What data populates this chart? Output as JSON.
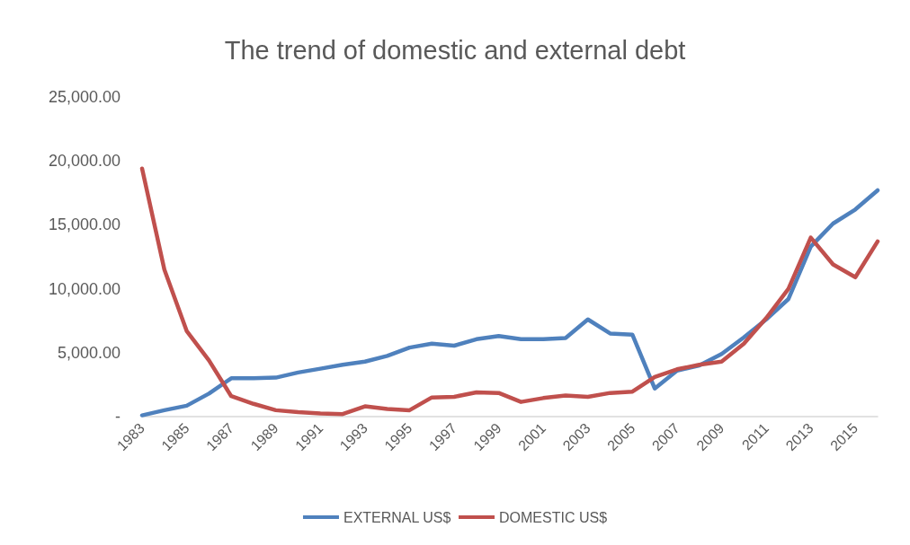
{
  "chart_data": {
    "type": "line",
    "title": "The trend of domestic and external debt",
    "categories": [
      "1983",
      null,
      "1985",
      null,
      "1987",
      null,
      "1989",
      null,
      "1991",
      null,
      "1993",
      null,
      "1995",
      null,
      "1997",
      null,
      "1999",
      null,
      "2001",
      null,
      "2003",
      null,
      "2005",
      null,
      "2007",
      null,
      "2009",
      null,
      "2011",
      null,
      "2013",
      null,
      "2015",
      null
    ],
    "series": [
      {
        "name": "EXTERNAL US$",
        "color": "#4f81bd",
        "values": [
          100,
          500,
          850,
          1800,
          3000,
          3000,
          3050,
          3450,
          3750,
          4050,
          4300,
          4750,
          5400,
          5700,
          5550,
          6050,
          6300,
          6050,
          6050,
          6150,
          7600,
          6500,
          6400,
          2200,
          3600,
          4000,
          4900,
          6200,
          7600,
          9200,
          13300,
          15100,
          16200,
          17700
        ]
      },
      {
        "name": "DOMESTIC US$",
        "color": "#c0504d",
        "values": [
          19400,
          11500,
          6700,
          4400,
          1600,
          1000,
          500,
          350,
          250,
          200,
          800,
          600,
          500,
          1500,
          1550,
          1900,
          1850,
          1150,
          1450,
          1650,
          1550,
          1850,
          1950,
          3100,
          3700,
          4050,
          4300,
          5700,
          7700,
          10000,
          14000,
          11900,
          10900,
          13700
        ]
      }
    ],
    "ylim": [
      0,
      25000
    ],
    "yticks": [
      {
        "value": 0,
        "label": "-"
      },
      {
        "value": 5000,
        "label": "5,000.00"
      },
      {
        "value": 10000,
        "label": "10,000.00"
      },
      {
        "value": 15000,
        "label": "15,000.00"
      },
      {
        "value": 20000,
        "label": "20,000.00"
      },
      {
        "value": 25000,
        "label": "25,000.00"
      }
    ],
    "grid": false,
    "legend": "bottom",
    "marker": "none",
    "line_style": "solid"
  }
}
